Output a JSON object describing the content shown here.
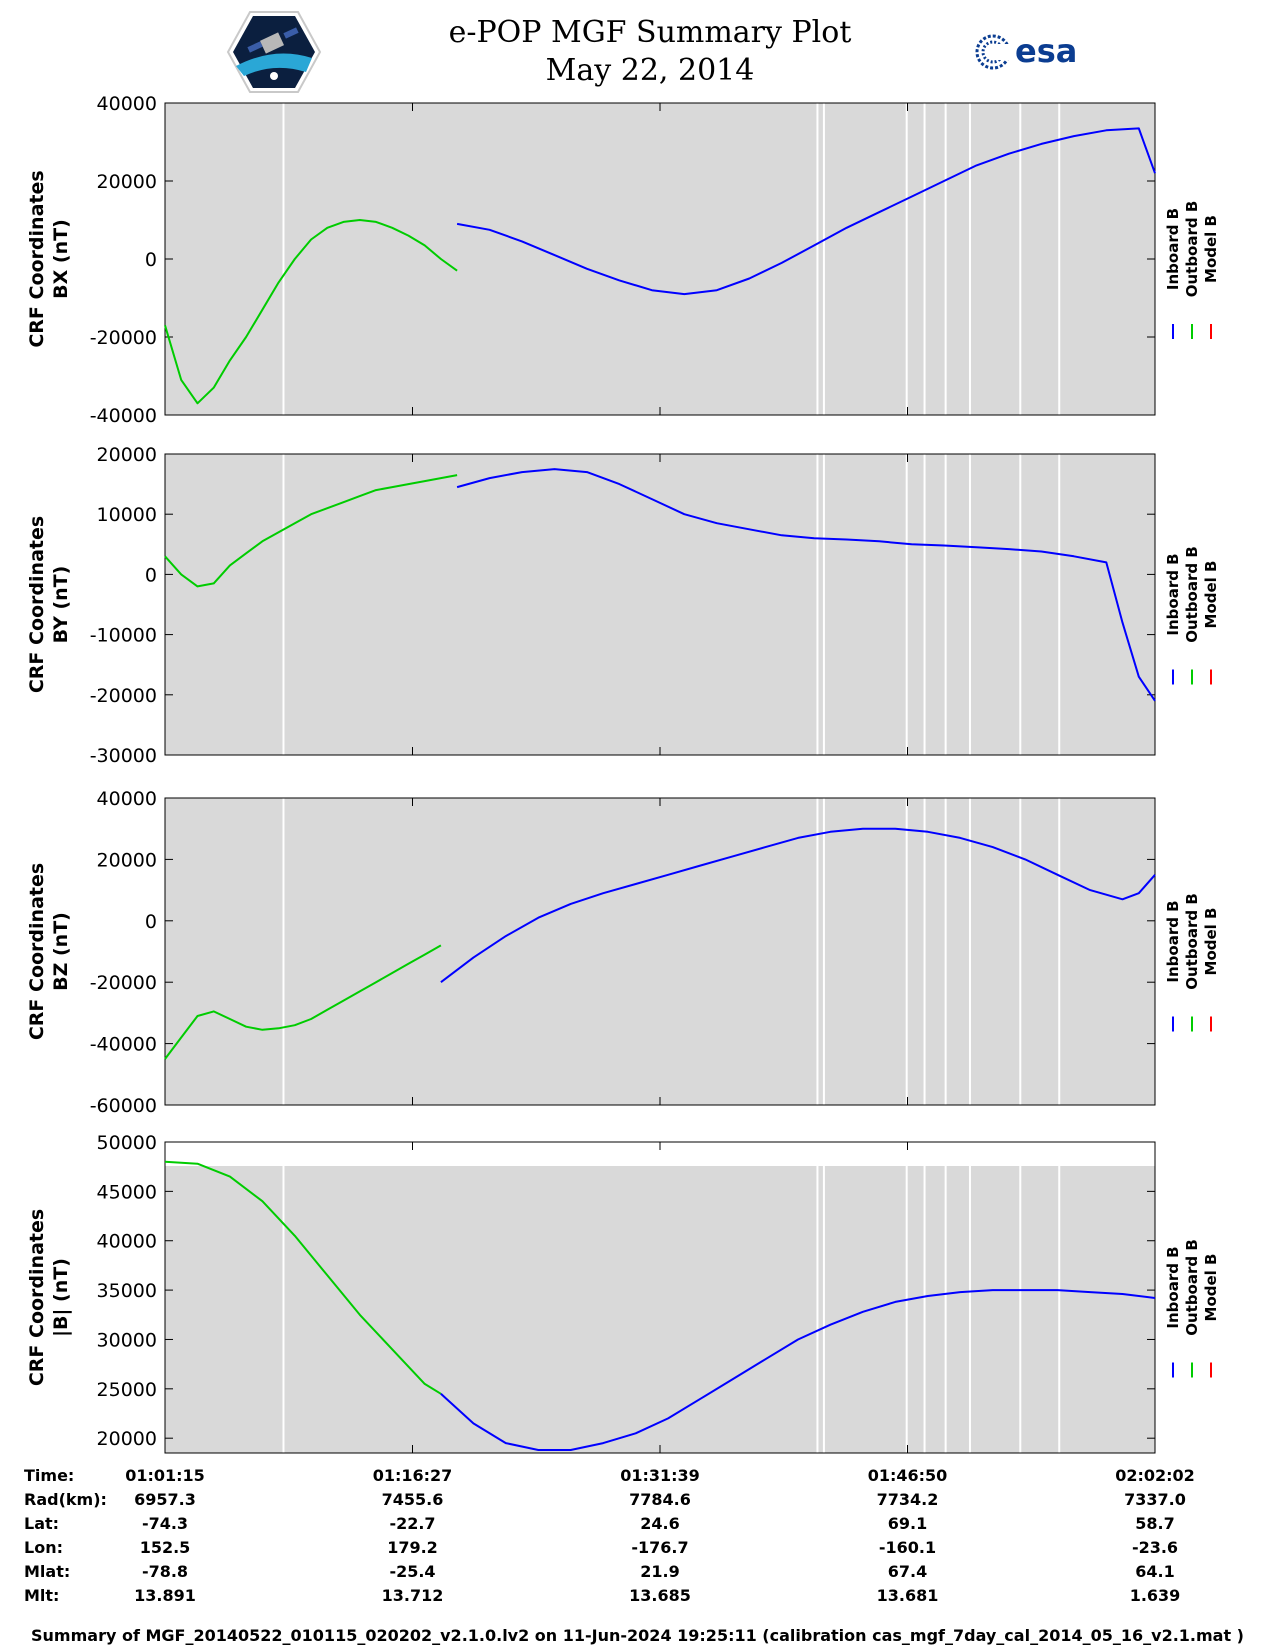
{
  "title": {
    "line1": "e-POP MGF Summary Plot",
    "line2": "May 22, 2014"
  },
  "logos": {
    "mission": "cassiope-mission-badge",
    "esa_text": "esa"
  },
  "colors": {
    "inboard": "#0000ff",
    "outboard": "#00cc00",
    "model": "#ff0000",
    "plot_background": "#d9d9d9",
    "gap": "#ffffff"
  },
  "legend": [
    "Inboard B",
    "Outboard B",
    "Model B"
  ],
  "x_ticks": [
    "01:01:15",
    "01:16:27",
    "01:31:39",
    "01:46:50",
    "02:02:02"
  ],
  "chart_data": [
    {
      "type": "line",
      "ylabel": [
        "CRF Coordinates",
        "BX (nT)"
      ],
      "ylim": [
        -40000,
        40000
      ],
      "yticks": [
        40000,
        20000,
        0,
        -20000,
        -40000
      ],
      "x_unit": "minutes since 01:01:15",
      "series": [
        {
          "name": "Outboard B",
          "x": [
            0,
            1,
            2,
            3,
            4,
            5,
            6,
            7,
            8,
            9,
            10,
            11,
            12,
            13,
            14,
            15,
            16,
            17,
            18
          ],
          "values": [
            -17000,
            -31000,
            -37000,
            -33000,
            -26000,
            -20000,
            -13000,
            -6000,
            0,
            5000,
            8000,
            9500,
            10000,
            9500,
            8000,
            6000,
            3500,
            0,
            -3000
          ]
        },
        {
          "name": "Inboard B",
          "x": [
            18,
            20,
            22,
            24,
            26,
            28,
            30,
            32,
            34,
            36,
            38,
            40,
            42,
            44,
            46,
            48,
            50,
            52,
            54,
            56,
            58,
            60,
            61
          ],
          "values": [
            9000,
            7500,
            4500,
            1000,
            -2500,
            -5500,
            -8000,
            -9000,
            -8000,
            -5000,
            -1000,
            3500,
            8000,
            12000,
            16000,
            20000,
            24000,
            27000,
            29500,
            31500,
            33000,
            33500,
            22000
          ]
        }
      ]
    },
    {
      "type": "line",
      "ylabel": [
        "CRF Coordinates",
        "BY (nT)"
      ],
      "ylim": [
        -30000,
        20000
      ],
      "yticks": [
        20000,
        10000,
        0,
        -10000,
        -20000,
        -30000
      ],
      "x_unit": "minutes since 01:01:15",
      "series": [
        {
          "name": "Outboard B",
          "x": [
            0,
            1,
            2,
            3,
            4,
            5,
            6,
            7,
            8,
            9,
            10,
            11,
            12,
            13,
            14,
            15,
            16,
            17,
            18
          ],
          "values": [
            3000,
            0,
            -2000,
            -1500,
            1500,
            3500,
            5500,
            7000,
            8500,
            10000,
            11000,
            12000,
            13000,
            14000,
            14500,
            15000,
            15500,
            16000,
            16500
          ]
        },
        {
          "name": "Inboard B",
          "x": [
            18,
            20,
            22,
            24,
            26,
            28,
            30,
            32,
            34,
            36,
            38,
            40,
            42,
            44,
            46,
            48,
            50,
            52,
            54,
            56,
            58,
            59,
            60,
            61
          ],
          "values": [
            14500,
            16000,
            17000,
            17500,
            17000,
            15000,
            12500,
            10000,
            8500,
            7500,
            6500,
            6000,
            5800,
            5500,
            5000,
            4800,
            4500,
            4200,
            3800,
            3000,
            2000,
            -8000,
            -17000,
            -21000
          ]
        }
      ]
    },
    {
      "type": "line",
      "ylabel": [
        "CRF Coordinates",
        "BZ (nT)"
      ],
      "ylim": [
        -60000,
        40000
      ],
      "yticks": [
        40000,
        20000,
        0,
        -20000,
        -40000,
        -60000
      ],
      "x_unit": "minutes since 01:01:15",
      "series": [
        {
          "name": "Outboard B",
          "x": [
            0,
            1,
            2,
            3,
            4,
            5,
            6,
            7,
            8,
            9,
            10,
            11,
            12,
            13,
            14,
            15,
            16,
            17
          ],
          "values": [
            -45000,
            -38000,
            -31000,
            -29500,
            -32000,
            -34500,
            -35500,
            -35000,
            -34000,
            -32000,
            -29000,
            -26000,
            -23000,
            -20000,
            -17000,
            -14000,
            -11000,
            -8000
          ]
        },
        {
          "name": "Inboard B",
          "x": [
            17,
            19,
            21,
            23,
            25,
            27,
            29,
            31,
            33,
            35,
            37,
            39,
            41,
            43,
            45,
            47,
            49,
            51,
            53,
            55,
            57,
            59,
            60,
            61
          ],
          "values": [
            -20000,
            -12000,
            -5000,
            1000,
            5500,
            9000,
            12000,
            15000,
            18000,
            21000,
            24000,
            27000,
            29000,
            30000,
            30000,
            29000,
            27000,
            24000,
            20000,
            15000,
            10000,
            7000,
            9000,
            15000
          ]
        }
      ]
    },
    {
      "type": "line",
      "ylabel": [
        "CRF Coordinates",
        "|B| (nT)"
      ],
      "ylim": [
        18500,
        50000
      ],
      "yticks": [
        50000,
        45000,
        40000,
        35000,
        30000,
        25000,
        20000
      ],
      "x_unit": "minutes since 01:01:15",
      "series": [
        {
          "name": "Outboard B",
          "x": [
            0,
            2,
            4,
            6,
            8,
            10,
            12,
            14,
            16,
            17
          ],
          "values": [
            48000,
            47800,
            46500,
            44000,
            40500,
            36500,
            32500,
            29000,
            25500,
            24500
          ]
        },
        {
          "name": "Inboard B",
          "x": [
            17,
            19,
            21,
            23,
            25,
            27,
            29,
            31,
            33,
            35,
            37,
            39,
            41,
            43,
            45,
            47,
            49,
            51,
            53,
            55,
            57,
            59,
            61
          ],
          "values": [
            24500,
            21500,
            19500,
            18800,
            18800,
            19500,
            20500,
            22000,
            24000,
            26000,
            28000,
            30000,
            31500,
            32800,
            33800,
            34400,
            34800,
            35000,
            35000,
            35000,
            34800,
            34600,
            34200
          ]
        }
      ]
    }
  ],
  "info": {
    "labels": [
      "Time:",
      "Rad(km):",
      "Lat:",
      "Lon:",
      "Mlat:",
      "Mlt:"
    ],
    "columns": [
      [
        "01:01:15",
        "6957.3",
        "-74.3",
        "152.5",
        "-78.8",
        "13.891"
      ],
      [
        "01:16:27",
        "7455.6",
        "-22.7",
        "179.2",
        "-25.4",
        "13.712"
      ],
      [
        "01:31:39",
        "7784.6",
        "24.6",
        "-176.7",
        "21.9",
        "13.685"
      ],
      [
        "01:46:50",
        "7734.2",
        "69.1",
        "-160.1",
        "67.4",
        "13.681"
      ],
      [
        "02:02:02",
        "7337.0",
        "58.7",
        "-23.6",
        "64.1",
        "1.639"
      ]
    ]
  },
  "footer": "Summary of MGF_20140522_010115_020202_v2.1.0.lv2 on 11-Jun-2024 19:25:11 (calibration cas_mgf_7day_cal_2014_05_16_v2.1.mat )"
}
